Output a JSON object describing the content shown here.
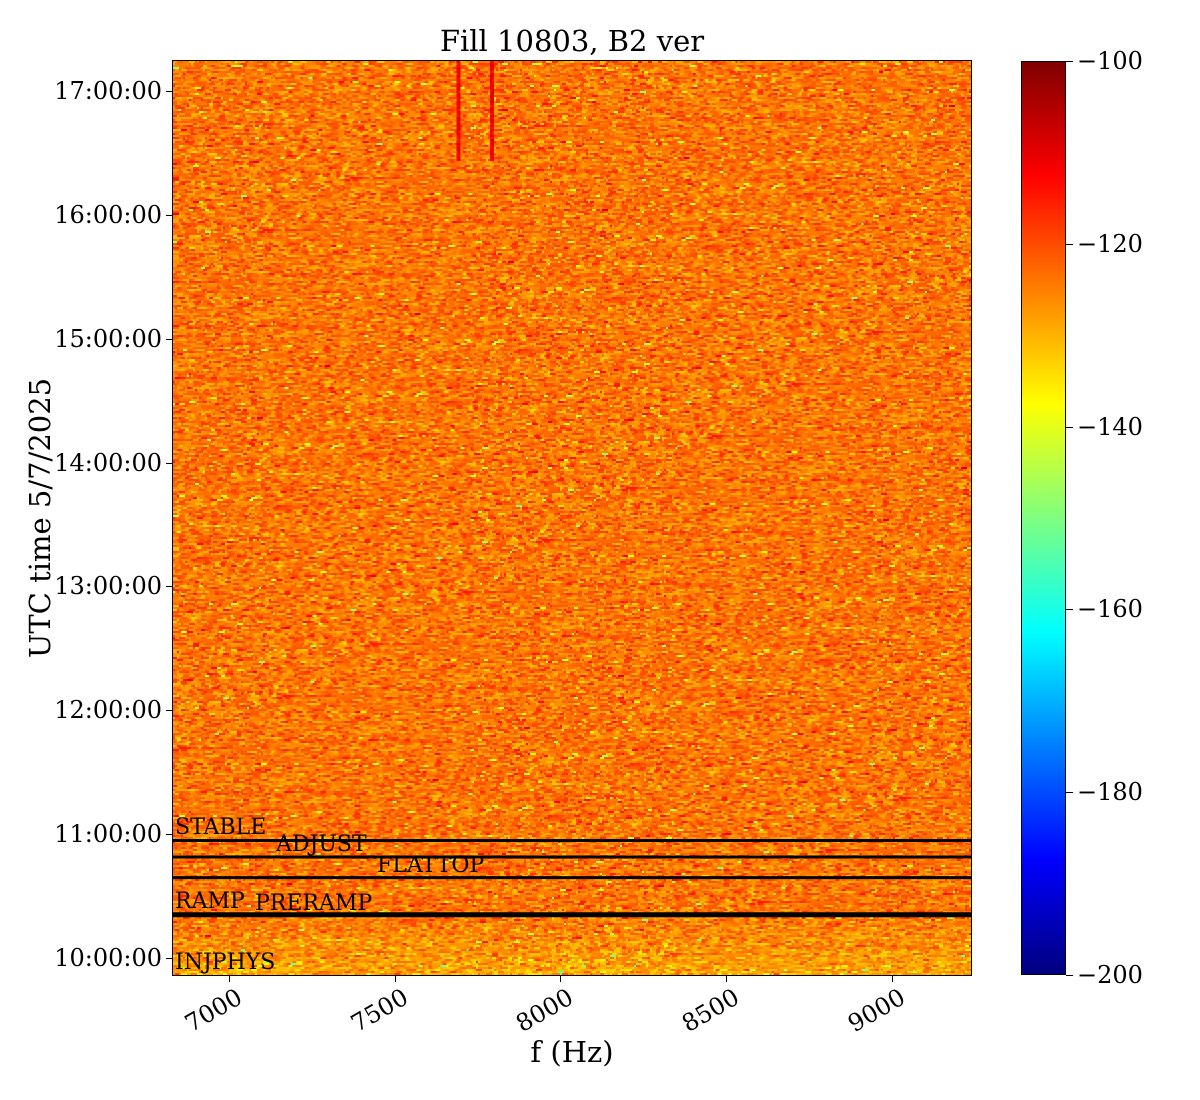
{
  "chart_data": {
    "type": "heatmap",
    "title": "Fill 10803, B2 ver",
    "xlabel": "f (Hz)",
    "ylabel": "UTC time 5/7/2025",
    "xlim": [
      6830,
      9240
    ],
    "ylim": [
      "09:51:50",
      "17:14:30"
    ],
    "x_ticks": [
      "7000",
      "7500",
      "8000",
      "8500",
      "9000"
    ],
    "x_tick_values": [
      7000,
      7500,
      8000,
      8500,
      9000
    ],
    "y_ticks": [
      "10:00:00",
      "11:00:00",
      "12:00:00",
      "13:00:00",
      "14:00:00",
      "15:00:00",
      "16:00:00",
      "17:00:00"
    ],
    "colorbar": {
      "range": [
        -200,
        -100
      ],
      "ticks": [
        "−100",
        "−120",
        "−140",
        "−160",
        "−180",
        "−200"
      ],
      "tick_values": [
        -100,
        -120,
        -140,
        -160,
        -180,
        -200
      ],
      "colormap": "jet"
    },
    "typical_level": -124,
    "features": [
      {
        "f": 7690,
        "from": "16:26:00",
        "to": "17:14:30",
        "level": -112
      },
      {
        "f": 7792,
        "from": "16:26:00",
        "to": "17:14:30",
        "level": -112
      }
    ],
    "phases": [
      {
        "label": "STABLE",
        "time": "10:57:00",
        "line": true
      },
      {
        "label": "ADJUST",
        "time": "10:49:00",
        "line": true
      },
      {
        "label": "FLATTOP",
        "time": "10:39:00",
        "line": true
      },
      {
        "label": "RAMP",
        "time": "10:21:30",
        "line": true
      },
      {
        "label": "PRERAMP",
        "time": "10:20:30",
        "line": true
      },
      {
        "label": "INJPHYS",
        "time": "09:51:50",
        "line": false
      }
    ]
  }
}
